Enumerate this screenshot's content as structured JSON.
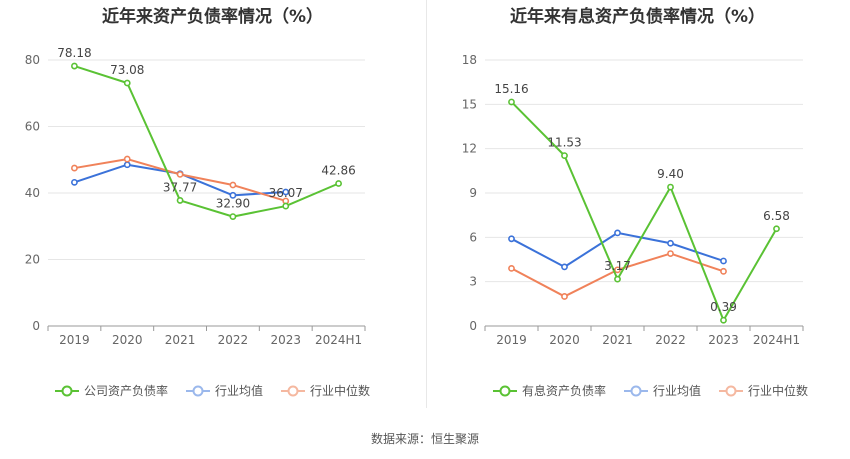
{
  "chart_data": [
    {
      "type": "line",
      "title": "近年来资产负债率情况（%）",
      "categories": [
        "2019",
        "2020",
        "2021",
        "2022",
        "2023",
        "2024H1"
      ],
      "ylim": [
        0,
        80
      ],
      "yticks": [
        "0",
        "20",
        "40",
        "60",
        "80"
      ],
      "grid": true,
      "legend_position": "bottom",
      "series": [
        {
          "name": "公司资产负债率",
          "color": "#5ac234",
          "values": [
            78.18,
            73.08,
            37.77,
            32.9,
            36.07,
            42.86
          ],
          "labels": [
            "78.18",
            "73.08",
            "37.77",
            "32.90",
            "36.07",
            "42.86"
          ]
        },
        {
          "name": "行业均值",
          "color": "#3b72d9",
          "values": [
            43.2,
            48.5,
            45.8,
            39.3,
            40.3,
            null
          ]
        },
        {
          "name": "行业中位数",
          "color": "#f0825a",
          "values": [
            47.5,
            50.2,
            45.6,
            42.4,
            37.6,
            null
          ]
        }
      ]
    },
    {
      "type": "line",
      "title": "近年来有息资产负债率情况（%）",
      "categories": [
        "2019",
        "2020",
        "2021",
        "2022",
        "2023",
        "2024H1"
      ],
      "ylim": [
        0,
        18
      ],
      "yticks": [
        "0",
        "3",
        "6",
        "9",
        "12",
        "15",
        "18"
      ],
      "grid": true,
      "legend_position": "bottom",
      "series": [
        {
          "name": "有息资产负债率",
          "color": "#5ac234",
          "values": [
            15.16,
            11.53,
            3.17,
            9.4,
            0.39,
            6.58
          ],
          "labels": [
            "15.16",
            "11.53",
            "3.17",
            "9.40",
            "0.39",
            "6.58"
          ]
        },
        {
          "name": "行业均值",
          "color": "#3b72d9",
          "values": [
            5.9,
            4.0,
            6.3,
            5.6,
            4.4,
            null
          ]
        },
        {
          "name": "行业中位数",
          "color": "#f0825a",
          "values": [
            3.9,
            2.0,
            3.8,
            4.9,
            3.7,
            null
          ]
        }
      ]
    }
  ],
  "source_note": "数据来源：恒生聚源"
}
